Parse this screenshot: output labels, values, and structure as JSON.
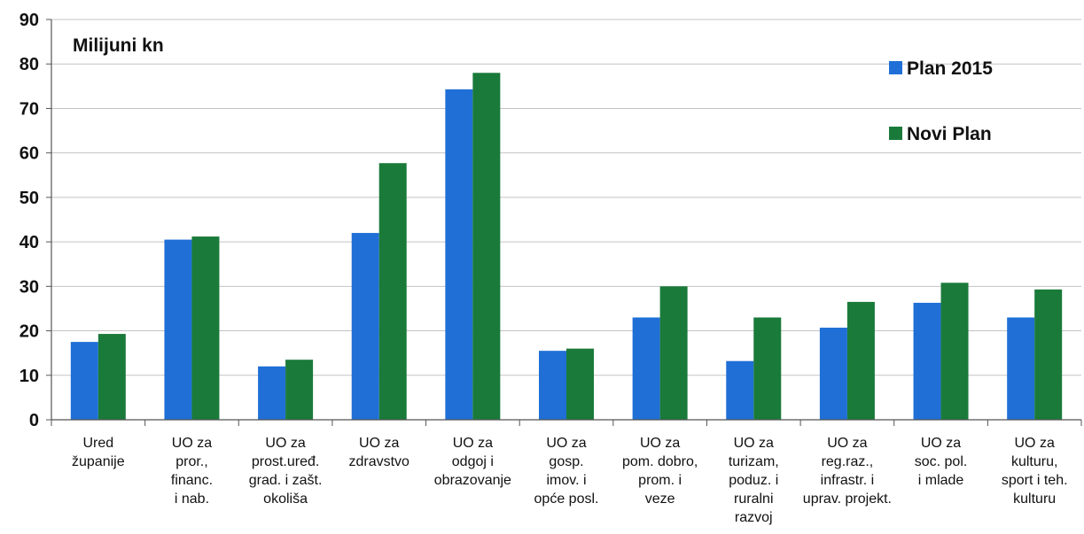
{
  "chart_data": {
    "type": "bar",
    "ylabel": "Milijuni kn",
    "ylim": [
      0,
      90
    ],
    "yticks": [
      0,
      10,
      20,
      30,
      40,
      50,
      60,
      70,
      80,
      90
    ],
    "grid": true,
    "legend_position": "top-right",
    "categories": [
      [
        "Ured",
        "županije"
      ],
      [
        "UO za",
        "pror.,",
        "financ.",
        "i nab."
      ],
      [
        "UO za",
        "prost.uređ.",
        "grad. i zašt.",
        "okoliša"
      ],
      [
        "UO za",
        "zdravstvo"
      ],
      [
        "UO za",
        "odgoj i",
        "obrazovanje"
      ],
      [
        "UO za",
        "gosp.",
        "imov. i",
        "opće posl."
      ],
      [
        "UO za",
        "pom. dobro,",
        "prom. i",
        "veze"
      ],
      [
        "UO za",
        "turizam,",
        "poduz. i",
        "ruralni",
        "razvoj"
      ],
      [
        "UO za",
        "reg.raz.,",
        "infrastr. i",
        "uprav. projekt."
      ],
      [
        "UO za",
        "soc. pol.",
        "i mlade"
      ],
      [
        "UO za",
        "kulturu,",
        "sport i teh.",
        "kulturu"
      ]
    ],
    "series": [
      {
        "name": "Plan 2015",
        "color": "#1f6fd6",
        "values": [
          17.5,
          40.5,
          12,
          42,
          74.3,
          15.5,
          23,
          13.2,
          20.7,
          26.3,
          23
        ]
      },
      {
        "name": "Novi Plan",
        "color": "#1a7a3a",
        "values": [
          19.3,
          41.2,
          13.5,
          57.7,
          78,
          16,
          30,
          23,
          26.5,
          30.8,
          29.3
        ]
      }
    ]
  }
}
